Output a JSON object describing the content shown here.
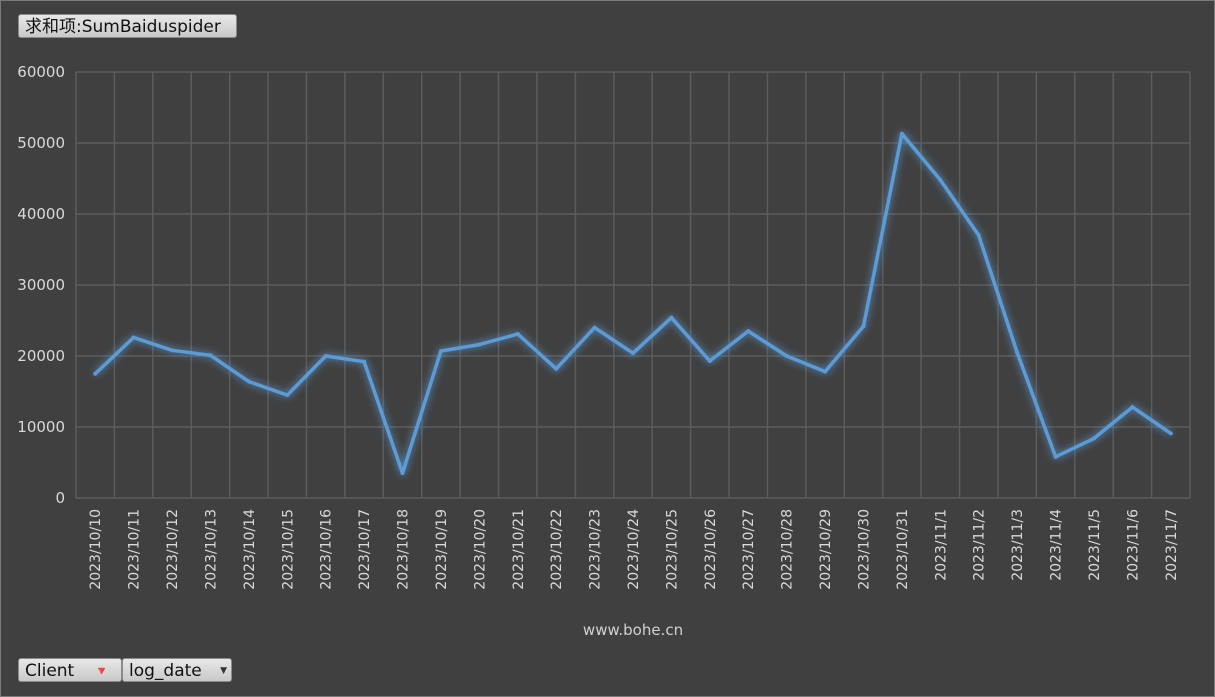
{
  "pivot": {
    "value_field_label": "求和项:SumBaiduspider",
    "filter_field_label": "Client",
    "filter_icon": "filter-icon",
    "axis_field_label": "log_date",
    "axis_dropdown_icon": "dropdown-arrow-icon"
  },
  "watermark": "www.bohe.cn",
  "colors": {
    "background": "#404040",
    "grid": "#5c5c5c",
    "line": "#5b9bd5",
    "text": "#d9d9d9"
  },
  "chart_data": {
    "type": "line",
    "title": "",
    "xlabel": "",
    "ylabel": "",
    "ylim": [
      0,
      60000
    ],
    "yticks": [
      0,
      10000,
      20000,
      30000,
      40000,
      50000,
      60000
    ],
    "grid": true,
    "legend": "none",
    "categories": [
      "2023/10/10",
      "2023/10/11",
      "2023/10/12",
      "2023/10/13",
      "2023/10/14",
      "2023/10/15",
      "2023/10/16",
      "2023/10/17",
      "2023/10/18",
      "2023/10/19",
      "2023/10/20",
      "2023/10/21",
      "2023/10/22",
      "2023/10/23",
      "2023/10/24",
      "2023/10/25",
      "2023/10/26",
      "2023/10/27",
      "2023/10/28",
      "2023/10/29",
      "2023/10/30",
      "2023/10/31",
      "2023/11/1",
      "2023/11/2",
      "2023/11/3",
      "2023/11/4",
      "2023/11/5",
      "2023/11/6",
      "2023/11/7"
    ],
    "series": [
      {
        "values": [
          17500,
          22600,
          20800,
          20100,
          16400,
          14500,
          20000,
          19200,
          3500,
          20700,
          21600,
          23100,
          18200,
          24000,
          20400,
          25400,
          19300,
          23500,
          20000,
          17800,
          24200,
          51300,
          44800,
          37000,
          20500,
          5800,
          8400,
          12800,
          9100
        ]
      }
    ]
  }
}
